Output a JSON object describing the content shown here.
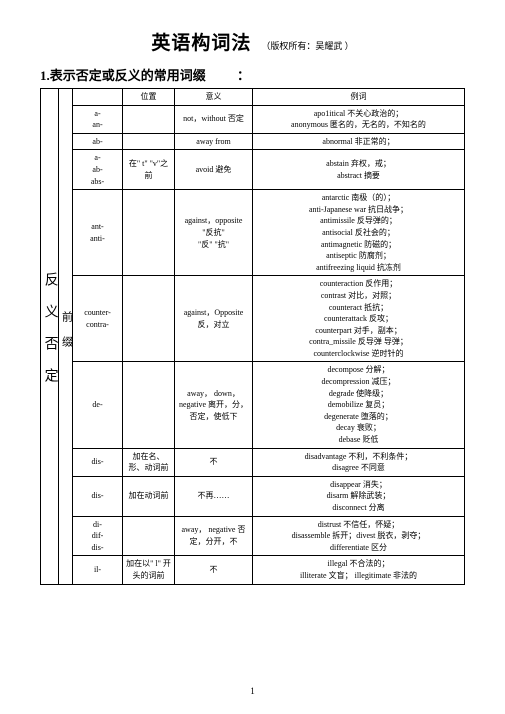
{
  "doc": {
    "title": "英语构词法",
    "subtitle": "（版权所有：吴耀武 ）",
    "section1": "1.表示否定或反义的常用词缀",
    "colon": "：",
    "header": {
      "pos": "位置",
      "meaning": "意义",
      "example": "例词"
    },
    "vlabel1": "反义否定",
    "vlabel2": "前缀",
    "rows": [
      {
        "prefix": "a-\nan-",
        "pos": "",
        "meaning": "not，without  否定",
        "example": "apo1itical 不关心政治的；\nanonymous 匿名的，无名的，不知名的"
      },
      {
        "prefix": "ab-",
        "pos": "",
        "meaning": "away from",
        "example": "abnormal 非正常的；"
      },
      {
        "prefix": "a-\nab-\nabs-",
        "pos": "在\" t\" \"v\"之前",
        "meaning": "avoid 避免",
        "example": "abstain 弃权，戒；\nabstract 摘要"
      },
      {
        "prefix": "ant-\nanti-",
        "pos": "",
        "meaning": "against，opposite\n\"反抗\"\n\"反\" \"抗\"",
        "example": "antarctic  南极（的）；\nanti-Japanese war 抗日战争；\nantimissile 反导弹的；\nantisocial 反社会的；\nantimagnetic 防磁的；\nantiseptic 防腐剂；\nantifreezing liquid  抗冻剂"
      },
      {
        "prefix": "counter-\ncontra-",
        "pos": "",
        "meaning": "against，Opposite\n反，对立",
        "example": "counteraction 反作用；\ncontrast 对比，对照；\ncounteract 抵抗；\ncounterattack 反攻；\ncounterpart 对手，副本；\ncontra_missile 反导弹  导弹；\ncounterclockwise 逆时针的"
      },
      {
        "prefix": "de-",
        "pos": "",
        "meaning": "away， down，negative 离开，分，否定，使低下",
        "example": "decompose 分解；\ndecompression 减压；\ndegrade 使降级；\ndemobilize 复员；\ndegenerate 堕落的；\ndecay 衰败；\ndebase 贬低"
      },
      {
        "prefix": "dis-",
        "pos": "加在名、形、动词前",
        "meaning": "不",
        "example": "disadvantage 不利，不利条件；\ndisagree 不同意"
      },
      {
        "prefix": "dis-",
        "pos": "加在动词前",
        "meaning": "不再……",
        "example": "disappear 消失；\ndisarm 解除武装；\ndisconnect 分离"
      },
      {
        "prefix": "di-\ndif-\ndis-",
        "pos": "",
        "meaning": "away， negative 否定，分开，不",
        "example": "distrust 不信任，怀疑；\ndisassemble 拆开；divest 脱衣，剥夺；\ndifferentiate  区分"
      },
      {
        "prefix": "il-",
        "pos": "加在以\" l\" 开头的词前",
        "meaning": "不",
        "example": "illegal 不合法的；\nilliterate  文盲； illegitimate 非法的"
      }
    ],
    "pageNumber": "1"
  }
}
